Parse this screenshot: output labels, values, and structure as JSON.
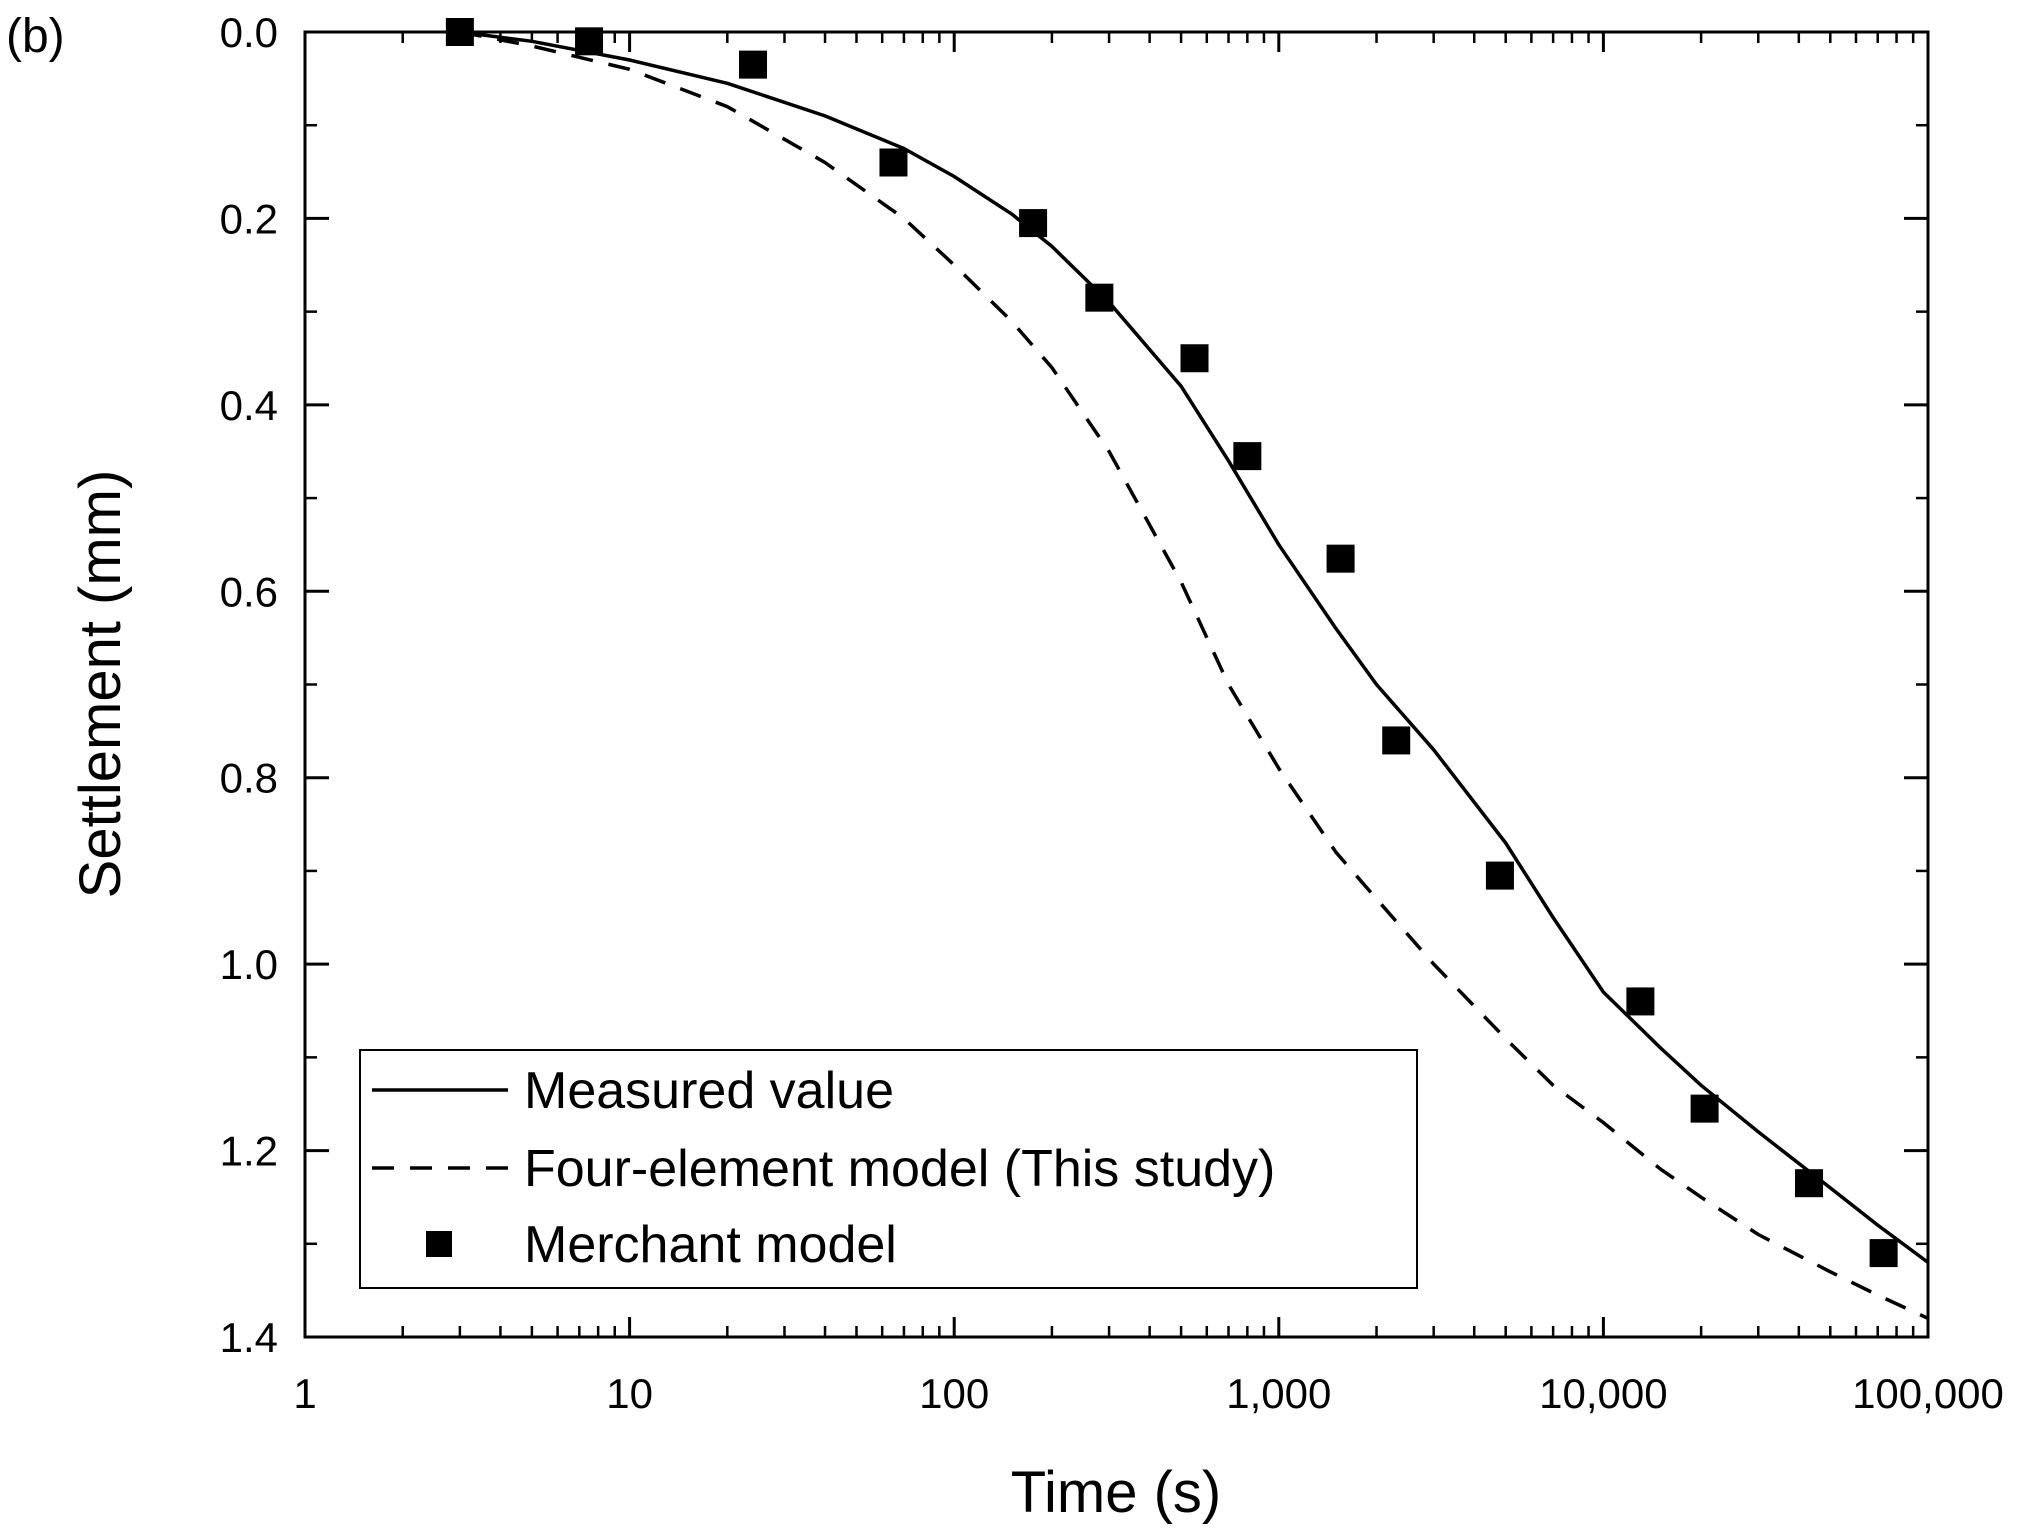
{
  "panel_label": "(b)",
  "chart_data": {
    "type": "line",
    "title": "",
    "xlabel": "Time (s)",
    "ylabel": "Settlement (mm)",
    "xscale": "log",
    "xlim": [
      1,
      100000
    ],
    "ylim": [
      0.0,
      1.4
    ],
    "y_inverted": true,
    "xticks": [
      1,
      10,
      100,
      1000,
      10000,
      100000
    ],
    "xtick_labels": [
      "1",
      "10",
      "100",
      "1,000",
      "10,000",
      "100,000"
    ],
    "yticks": [
      0.0,
      0.2,
      0.4,
      0.6,
      0.8,
      1.0,
      1.2,
      1.4
    ],
    "ytick_labels": [
      "0.0",
      "0.2",
      "0.4",
      "0.6",
      "0.8",
      "1.0",
      "1.2",
      "1.4"
    ],
    "grid": false,
    "legend_position": "bottom-left",
    "series": [
      {
        "name": "Measured value",
        "style": "solid",
        "x": [
          3,
          5,
          10,
          20,
          40,
          70,
          100,
          150,
          200,
          300,
          500,
          700,
          1000,
          1500,
          2000,
          3000,
          5000,
          7000,
          10000,
          15000,
          20000,
          30000,
          50000,
          70000,
          100000
        ],
        "y": [
          0.0,
          0.01,
          0.03,
          0.055,
          0.09,
          0.125,
          0.155,
          0.195,
          0.23,
          0.29,
          0.38,
          0.46,
          0.55,
          0.64,
          0.7,
          0.77,
          0.87,
          0.95,
          1.03,
          1.09,
          1.13,
          1.18,
          1.24,
          1.28,
          1.32
        ]
      },
      {
        "name": "Four-element model (This study)",
        "style": "dashed",
        "x": [
          3,
          5,
          10,
          20,
          40,
          70,
          100,
          150,
          200,
          300,
          500,
          700,
          1000,
          1500,
          2000,
          3000,
          5000,
          7000,
          10000,
          15000,
          20000,
          30000,
          50000,
          70000,
          100000
        ],
        "y": [
          0.0,
          0.015,
          0.04,
          0.08,
          0.14,
          0.2,
          0.25,
          0.31,
          0.36,
          0.45,
          0.59,
          0.7,
          0.79,
          0.88,
          0.93,
          1.0,
          1.08,
          1.13,
          1.17,
          1.22,
          1.25,
          1.29,
          1.33,
          1.355,
          1.38
        ]
      },
      {
        "name": "Merchant model",
        "style": "markers",
        "x": [
          3,
          7.5,
          24,
          65,
          175,
          280,
          550,
          800,
          1550,
          2300,
          4800,
          13000,
          20500,
          43000,
          73000
        ],
        "y": [
          0.0,
          0.01,
          0.035,
          0.14,
          0.205,
          0.285,
          0.35,
          0.455,
          0.565,
          0.76,
          0.905,
          1.04,
          1.155,
          1.235,
          1.31
        ]
      }
    ]
  }
}
